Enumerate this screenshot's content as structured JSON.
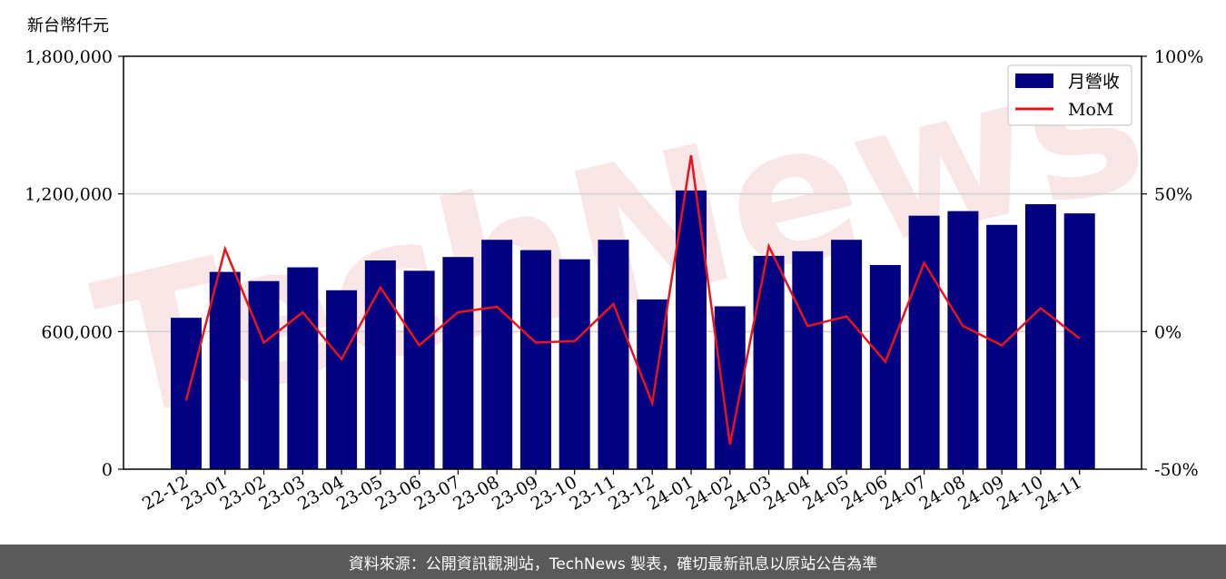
{
  "unit_label": "新台幣仟元",
  "watermark": "TechNews",
  "footer": "資料來源：公開資訊觀測站，TechNews 製表，確切最新訊息以原站公告為準",
  "colors": {
    "bar": "#000080",
    "line": "#e8141b",
    "grid": "#d0d0d0",
    "footer_bg": "#5a5a5a"
  },
  "chart_data": {
    "type": "bar",
    "categories": [
      "22-12",
      "23-01",
      "23-02",
      "23-03",
      "23-04",
      "23-05",
      "23-06",
      "23-07",
      "23-08",
      "23-09",
      "23-10",
      "23-11",
      "23-12",
      "24-01",
      "24-02",
      "24-03",
      "24-04",
      "24-05",
      "24-06",
      "24-07",
      "24-08",
      "24-09",
      "24-10",
      "24-11"
    ],
    "series": [
      {
        "name": "月營收",
        "type": "bar",
        "axis": "left",
        "values": [
          660000,
          860000,
          820000,
          880000,
          780000,
          910000,
          865000,
          925000,
          1000000,
          955000,
          915000,
          1000000,
          740000,
          1215000,
          710000,
          930000,
          950000,
          1000000,
          890000,
          1105000,
          1125000,
          1065000,
          1155000,
          1115000
        ]
      },
      {
        "name": "MoM",
        "type": "line",
        "axis": "right",
        "values": [
          -25,
          30,
          -4,
          7,
          -10,
          16,
          -5,
          7,
          9,
          -4,
          -3.5,
          10,
          -26,
          64,
          -41,
          31,
          2,
          5.5,
          -11,
          25,
          2,
          -5,
          8.5,
          -2.5
        ]
      }
    ],
    "yleft": {
      "ylim": [
        0,
        1800000
      ],
      "ticks": [
        0,
        600000,
        1200000,
        1800000
      ],
      "tick_labels": [
        "0",
        "600,000",
        "1,200,000",
        "1,800,000"
      ]
    },
    "yright": {
      "ylim": [
        -50,
        100
      ],
      "ticks": [
        -50,
        0,
        50,
        100
      ],
      "tick_labels": [
        "-50%",
        "0%",
        "50%",
        "100%"
      ]
    },
    "grid": "horizontal",
    "legend": {
      "position": "top-right",
      "items": [
        "月營收",
        "MoM"
      ]
    }
  }
}
